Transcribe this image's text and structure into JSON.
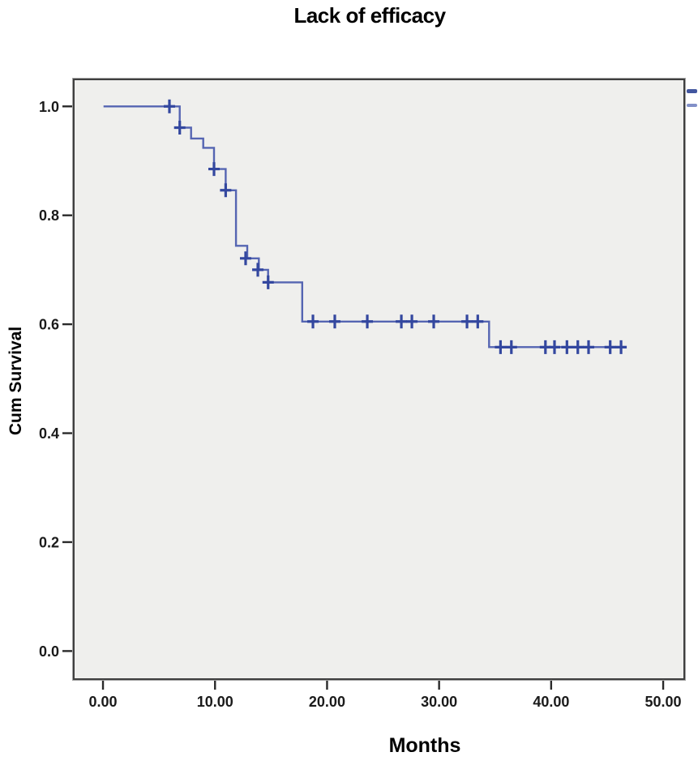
{
  "title": "Lack of efficacy",
  "colors": {
    "curve": "#5565b2",
    "censor": "#33479f",
    "plot_background": "#efefed",
    "plot_border": "#3f3f3f",
    "tick": "#2a2a2a",
    "tick_label": "#1a1a1a",
    "legend_fragment_dark": "#42569f",
    "legend_fragment_light": "#8290c8"
  },
  "legend_fragments": [
    {
      "name": "clipped-censor-glyph-top"
    },
    {
      "name": "clipped-censor-glyph-bottom"
    }
  ],
  "chart_data": {
    "type": "line",
    "subtype": "kaplan-meier-step",
    "title": "Lack of efficacy",
    "xlabel": "Months",
    "ylabel": "Cum Survival",
    "grid": false,
    "legend": "clipped off right edge",
    "xlim": [
      -2.68,
      51.95
    ],
    "ylim": [
      -0.053,
      1.051
    ],
    "x_ticks": [
      {
        "value": 0,
        "label": "0.00"
      },
      {
        "value": 10,
        "label": "10.00"
      },
      {
        "value": 20,
        "label": "20.00"
      },
      {
        "value": 30,
        "label": "30.00"
      },
      {
        "value": 40,
        "label": "40.00"
      },
      {
        "value": 50,
        "label": "50.00"
      }
    ],
    "y_ticks": [
      {
        "value": 0.0,
        "label": "0.0"
      },
      {
        "value": 0.2,
        "label": "0.2"
      },
      {
        "value": 0.4,
        "label": "0.4"
      },
      {
        "value": 0.6,
        "label": "0.6"
      },
      {
        "value": 0.8,
        "label": "0.8"
      },
      {
        "value": 1.0,
        "label": "1.0"
      }
    ],
    "series": [
      {
        "name": "Cum Survival",
        "start": [
          0.05,
          1.0
        ],
        "drops": [
          [
            6.85,
            0.961
          ],
          [
            7.86,
            0.941
          ],
          [
            8.95,
            0.924
          ],
          [
            9.91,
            0.885
          ],
          [
            10.95,
            0.846
          ],
          [
            11.87,
            0.744
          ],
          [
            12.88,
            0.721
          ],
          [
            13.91,
            0.7
          ],
          [
            14.74,
            0.677
          ],
          [
            17.78,
            0.605
          ],
          [
            34.46,
            0.558
          ]
        ],
        "end_time": 46.74,
        "censor_marks": [
          [
            5.93,
            1.0
          ],
          [
            6.85,
            0.961
          ],
          [
            9.91,
            0.885
          ],
          [
            10.95,
            0.846
          ],
          [
            12.73,
            0.721
          ],
          [
            13.82,
            0.7
          ],
          [
            14.74,
            0.677
          ],
          [
            18.74,
            0.605
          ],
          [
            20.69,
            0.605
          ],
          [
            23.59,
            0.605
          ],
          [
            26.63,
            0.605
          ],
          [
            27.57,
            0.605
          ],
          [
            29.52,
            0.605
          ],
          [
            32.49,
            0.605
          ],
          [
            33.45,
            0.605
          ],
          [
            35.48,
            0.558
          ],
          [
            36.45,
            0.558
          ],
          [
            39.49,
            0.558
          ],
          [
            40.3,
            0.558
          ],
          [
            41.41,
            0.558
          ],
          [
            42.38,
            0.558
          ],
          [
            43.34,
            0.558
          ],
          [
            45.27,
            0.558
          ],
          [
            46.24,
            0.558
          ]
        ]
      }
    ]
  }
}
